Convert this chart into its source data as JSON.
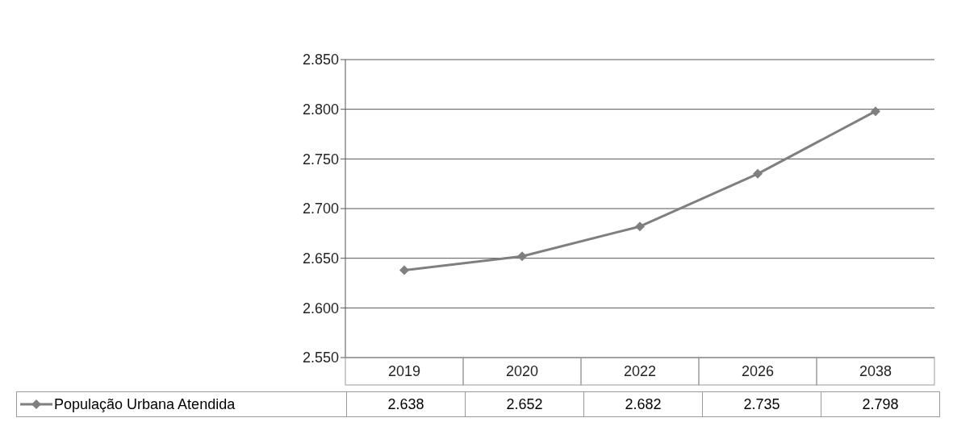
{
  "chart_data": {
    "type": "line",
    "categories": [
      "2019",
      "2020",
      "2022",
      "2026",
      "2038"
    ],
    "series": [
      {
        "name": "População Urbana Atendida",
        "color": "#7f7f7f",
        "values": [
          2.638,
          2.652,
          2.682,
          2.735,
          2.798
        ]
      }
    ],
    "ylim": [
      2.55,
      2.85
    ],
    "yticks": [
      {
        "value": 2.55,
        "label": "2.550"
      },
      {
        "value": 2.6,
        "label": "2.600"
      },
      {
        "value": 2.65,
        "label": "2.650"
      },
      {
        "value": 2.7,
        "label": "2.700"
      },
      {
        "value": 2.75,
        "label": "2.750"
      },
      {
        "value": 2.8,
        "label": "2.800"
      },
      {
        "value": 2.85,
        "label": "2.850"
      }
    ],
    "grid": "y",
    "marker": "diamond",
    "line_style": "solid",
    "legend": "bottom left",
    "data_labels": true
  }
}
